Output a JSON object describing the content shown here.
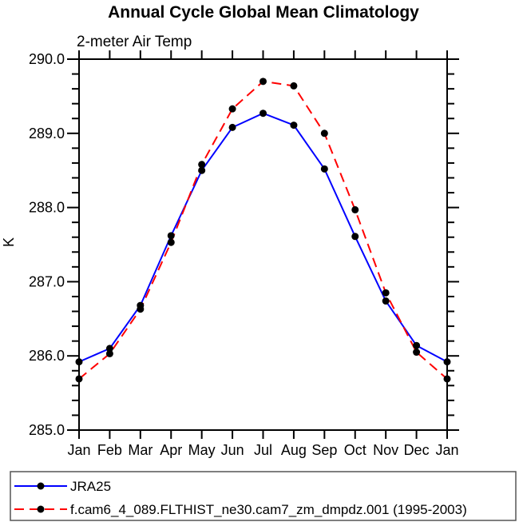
{
  "chart": {
    "title": "Annual Cycle Global Mean Climatology",
    "subtitle": "2-meter Air Temp",
    "ylabel": "K"
  },
  "chart_data": {
    "type": "line",
    "categories": [
      "Jan",
      "Feb",
      "Mar",
      "Apr",
      "May",
      "Jun",
      "Jul",
      "Aug",
      "Sep",
      "Oct",
      "Nov",
      "Dec",
      "Jan"
    ],
    "series": [
      {
        "name": "JRA25",
        "color": "#0000ff",
        "line_style": "solid",
        "values": [
          285.92,
          286.1,
          286.68,
          287.62,
          288.5,
          289.08,
          289.27,
          289.11,
          288.52,
          287.61,
          286.74,
          286.14,
          285.92
        ]
      },
      {
        "name": "f.cam6_4_089.FLTHIST_ne30.cam7_zm_dmpdz.001 (1995-2003)",
        "color": "#ff0000",
        "line_style": "dashed",
        "values": [
          285.69,
          286.03,
          286.63,
          287.53,
          288.58,
          289.33,
          289.7,
          289.64,
          289.0,
          287.97,
          286.85,
          286.05,
          285.69
        ]
      }
    ],
    "marker": {
      "shape": "circle",
      "color": "#000000"
    },
    "xlabel": "",
    "ylabel": "K",
    "ylim": [
      285.0,
      290.0
    ],
    "ytick_labels": [
      "285.0",
      "286.0",
      "287.0",
      "288.0",
      "289.0",
      "290.0"
    ],
    "ytick_minor_interval": 0.2,
    "grid": false,
    "legend_position": "bottom-left-box"
  }
}
